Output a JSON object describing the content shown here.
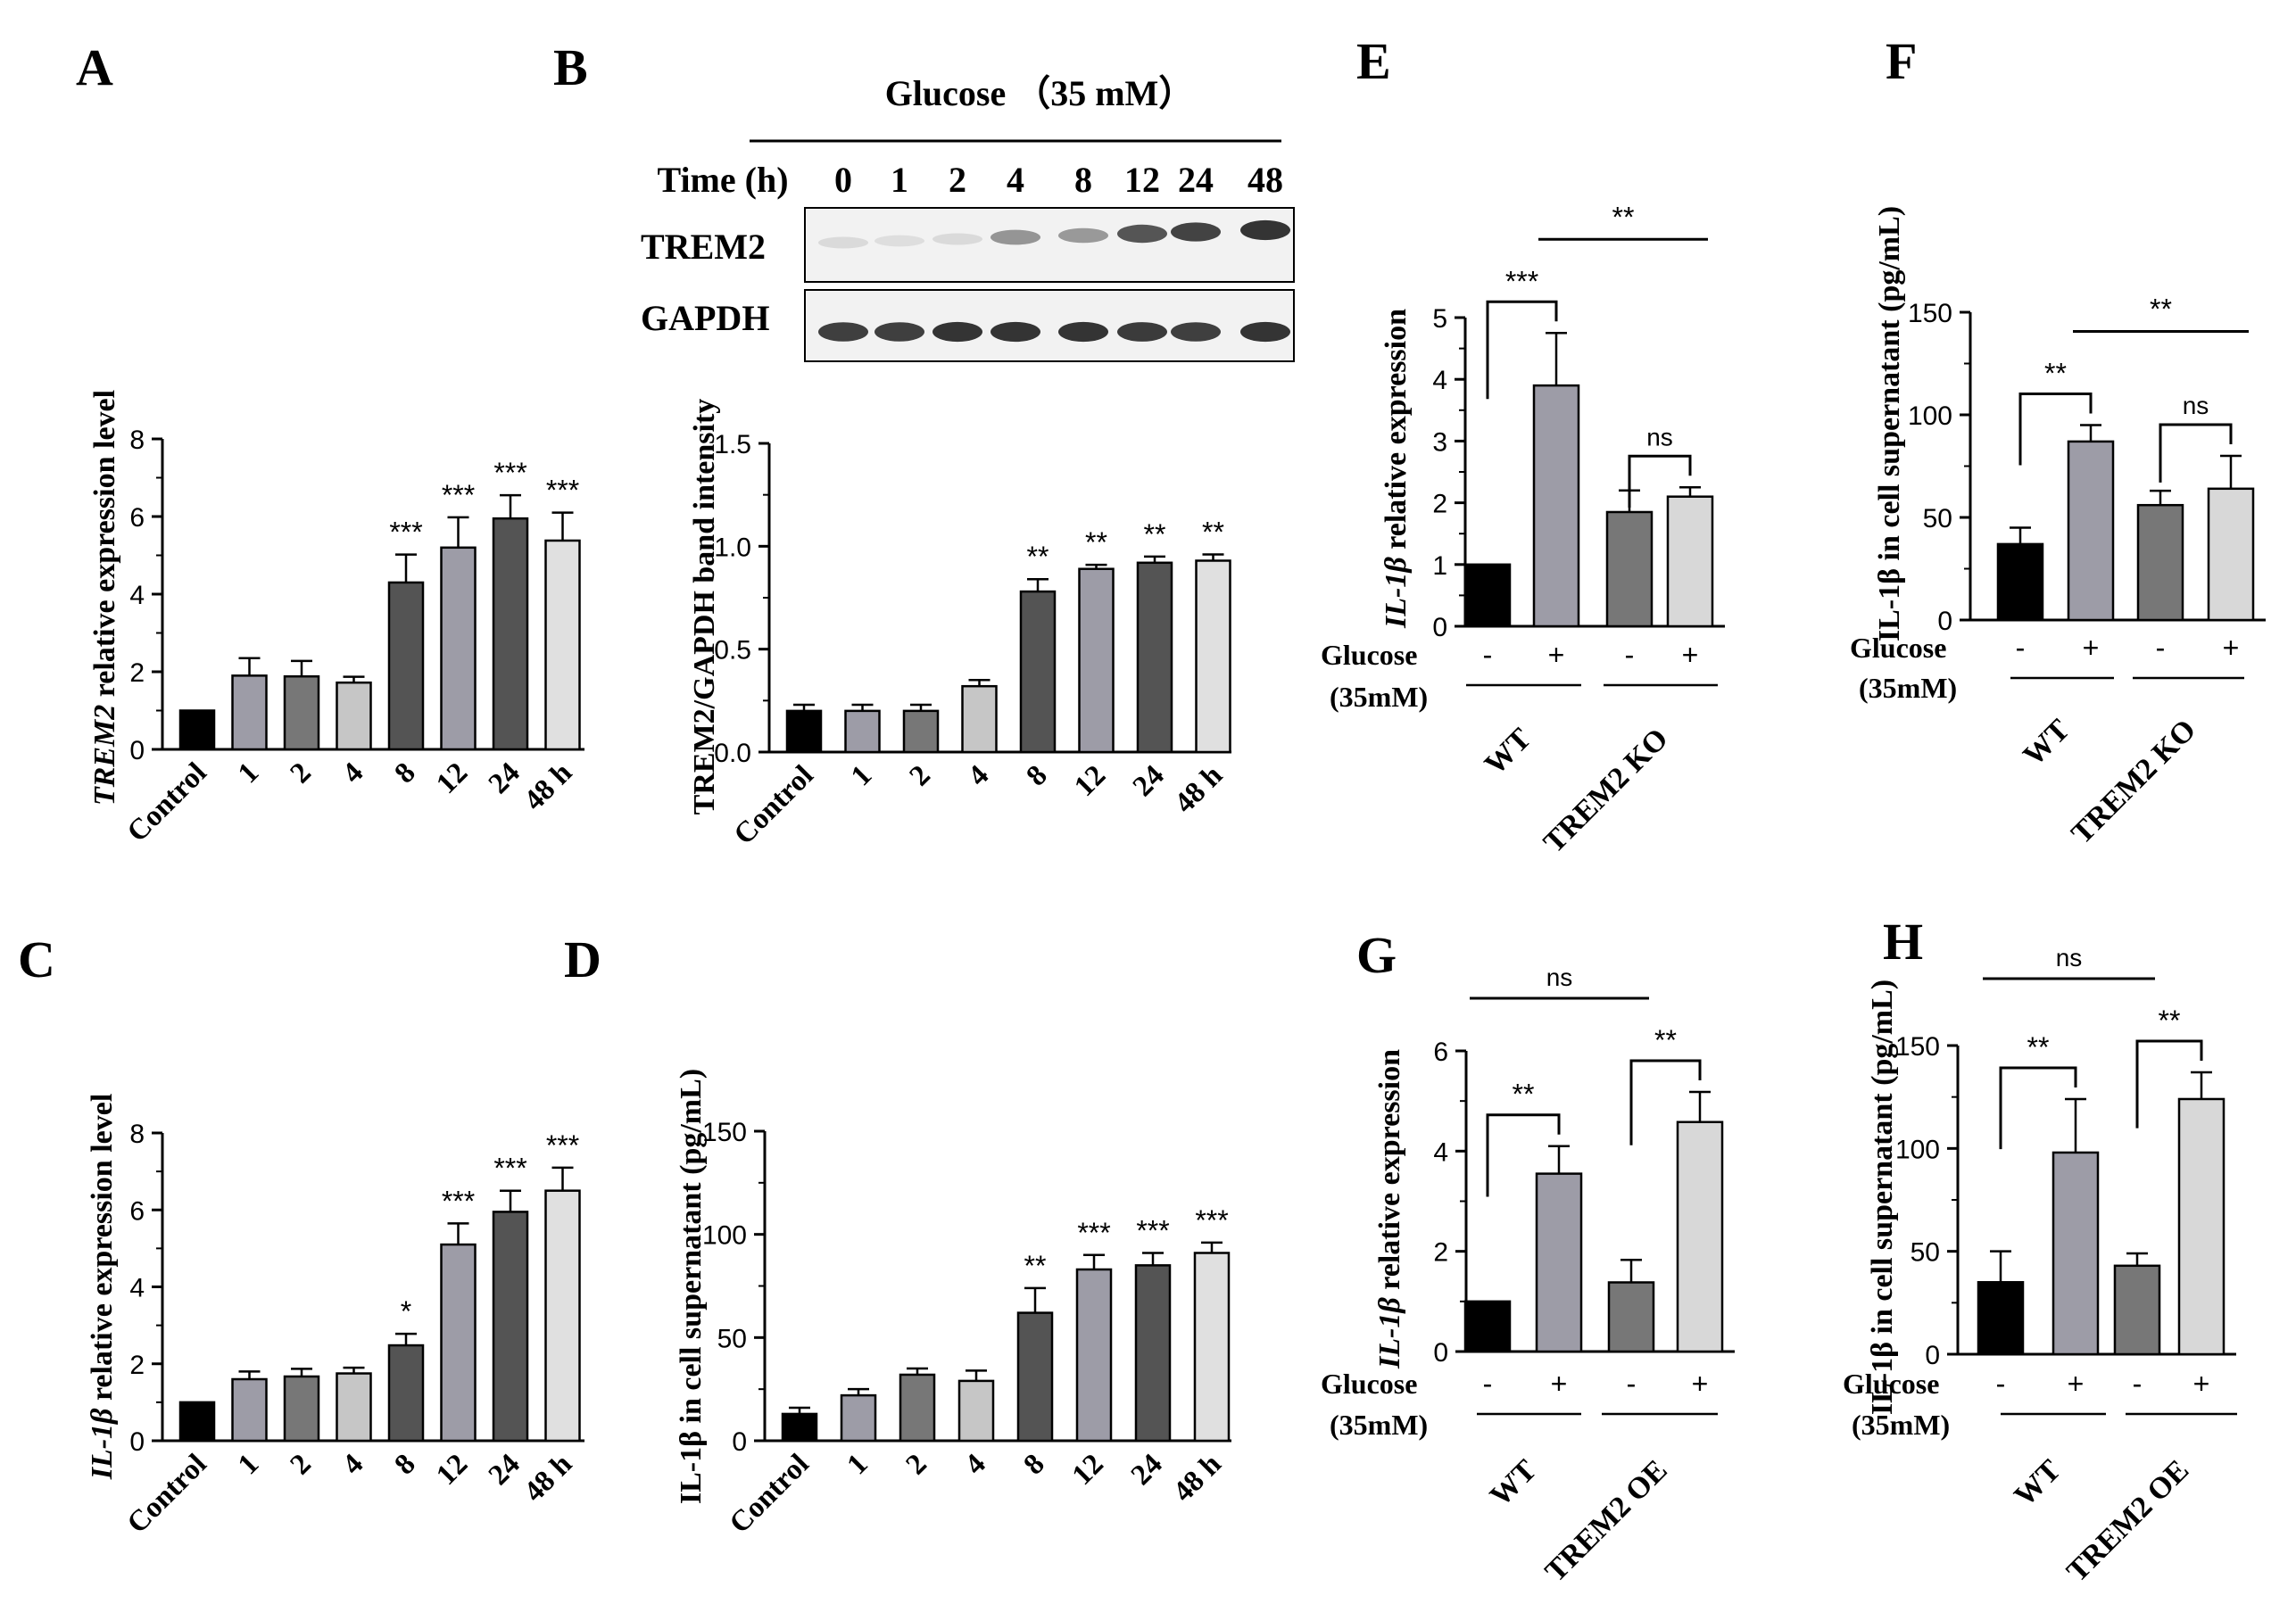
{
  "chart_data": [
    {
      "panel": "A",
      "type": "bar",
      "ylabel_italic": "TREM2",
      "ylabel": " relative expression level",
      "categories": [
        "Control",
        "1",
        "2",
        "4",
        "8",
        "12",
        "24",
        "48 h"
      ],
      "values": [
        1.0,
        1.9,
        1.88,
        1.72,
        4.3,
        5.2,
        5.95,
        5.38
      ],
      "errors": [
        0,
        0.45,
        0.4,
        0.15,
        0.72,
        0.78,
        0.6,
        0.72
      ],
      "colors": [
        "#000000",
        "#9d9ca7",
        "#777777",
        "#c6c6c6",
        "#545454",
        "#9d9ca7",
        "#545454",
        "#e0e0e0"
      ],
      "significance": [
        "",
        "",
        "",
        "",
        "***",
        "***",
        "***",
        "***"
      ],
      "ylim": [
        0,
        8
      ],
      "yticks": [
        "0",
        "2",
        "4",
        "6",
        "8"
      ]
    },
    {
      "panel": "B",
      "type": "bar",
      "ylabel": "TREM2/GAPDH band intensity",
      "categories": [
        "Control",
        "1",
        "2",
        "4",
        "8",
        "12",
        "24",
        "48 h"
      ],
      "values": [
        0.2,
        0.2,
        0.2,
        0.32,
        0.78,
        0.89,
        0.92,
        0.93
      ],
      "errors": [
        0.03,
        0.03,
        0.03,
        0.03,
        0.06,
        0.02,
        0.03,
        0.03
      ],
      "colors": [
        "#000000",
        "#9d9ca7",
        "#777777",
        "#c6c6c6",
        "#545454",
        "#9d9ca7",
        "#545454",
        "#e0e0e0"
      ],
      "significance": [
        "",
        "",
        "",
        "",
        "**",
        "**",
        "**",
        "**"
      ],
      "ylim": [
        0,
        1.5
      ],
      "yticks": [
        "0.0",
        "0.5",
        "1.0",
        "1.5"
      ]
    },
    {
      "panel": "C",
      "type": "bar",
      "ylabel_italic": "IL-1β",
      "ylabel": " relative expression level",
      "categories": [
        "Control",
        "1",
        "2",
        "4",
        "8",
        "12",
        "24",
        "48 h"
      ],
      "values": [
        1.0,
        1.6,
        1.67,
        1.75,
        2.48,
        5.1,
        5.95,
        6.5
      ],
      "errors": [
        0,
        0.2,
        0.2,
        0.15,
        0.3,
        0.55,
        0.55,
        0.6
      ],
      "colors": [
        "#000000",
        "#9d9ca7",
        "#777777",
        "#c6c6c6",
        "#545454",
        "#9d9ca7",
        "#545454",
        "#e0e0e0"
      ],
      "significance": [
        "",
        "",
        "",
        "",
        "*",
        "***",
        "***",
        "***"
      ],
      "ylim": [
        0,
        8
      ],
      "yticks": [
        "0",
        "2",
        "4",
        "6",
        "8"
      ]
    },
    {
      "panel": "D",
      "type": "bar",
      "ylabel": "IL-1β in cell supernatant (pg/mL)",
      "categories": [
        "Control",
        "1",
        "2",
        "4",
        "8",
        "12",
        "24",
        "48 h"
      ],
      "values": [
        13,
        22,
        32,
        29,
        62,
        83,
        85,
        91
      ],
      "errors": [
        3,
        3,
        3,
        5,
        12,
        7,
        6,
        5
      ],
      "colors": [
        "#000000",
        "#9d9ca7",
        "#777777",
        "#c6c6c6",
        "#545454",
        "#9d9ca7",
        "#545454",
        "#e0e0e0"
      ],
      "significance": [
        "",
        "",
        "",
        "",
        "**",
        "***",
        "***",
        "***"
      ],
      "ylim": [
        0,
        150
      ],
      "yticks": [
        "0",
        "50",
        "100",
        "150"
      ]
    },
    {
      "panel": "E",
      "type": "bar",
      "ylabel_italic": "IL-1β",
      "ylabel": " relative expression",
      "glucose": [
        "-",
        "+",
        "-",
        "+"
      ],
      "groups": [
        "WT",
        "TREM2 KO"
      ],
      "values": [
        1.0,
        3.9,
        1.85,
        2.1
      ],
      "errors": [
        0,
        0.85,
        0.35,
        0.15
      ],
      "colors": [
        "#000000",
        "#9d9ca7",
        "#777777",
        "#d8d8d8"
      ],
      "comparisons": [
        {
          "label": "***",
          "type": "bracket",
          "from": 0,
          "to": 1
        },
        {
          "label": "ns",
          "type": "bracket",
          "from": 2,
          "to": 3
        },
        {
          "label": "**",
          "type": "line",
          "from": 1,
          "to": 3
        }
      ],
      "ylim": [
        0,
        5
      ],
      "yticks": [
        "0",
        "1",
        "2",
        "3",
        "4",
        "5"
      ]
    },
    {
      "panel": "F",
      "type": "bar",
      "ylabel": "IL-1β  in cell supernatant (pg/mL)",
      "glucose": [
        "-",
        "+",
        "-",
        "+"
      ],
      "groups": [
        "WT",
        "TREM2 KO"
      ],
      "values": [
        37,
        87,
        56,
        64
      ],
      "errors": [
        8,
        8,
        7,
        16
      ],
      "colors": [
        "#000000",
        "#9d9ca7",
        "#777777",
        "#d8d8d8"
      ],
      "comparisons": [
        {
          "label": "**",
          "type": "bracket",
          "from": 0,
          "to": 1
        },
        {
          "label": "ns",
          "type": "bracket",
          "from": 2,
          "to": 3
        },
        {
          "label": "**",
          "type": "line",
          "from": 1,
          "to": 3
        }
      ],
      "ylim": [
        0,
        150
      ],
      "yticks": [
        "0",
        "50",
        "100",
        "150"
      ]
    },
    {
      "panel": "G",
      "type": "bar",
      "ylabel_italic": "IL-1β",
      "ylabel": " relative expression",
      "glucose": [
        "-",
        "+",
        "-",
        "+"
      ],
      "groups": [
        "WT",
        "TREM2 OE"
      ],
      "values": [
        1.0,
        3.55,
        1.38,
        4.58
      ],
      "errors": [
        0,
        0.55,
        0.45,
        0.6
      ],
      "colors": [
        "#000000",
        "#9d9ca7",
        "#777777",
        "#d8d8d8"
      ],
      "comparisons": [
        {
          "label": "**",
          "type": "bracket",
          "from": 0,
          "to": 1
        },
        {
          "label": "**",
          "type": "bracket",
          "from": 2,
          "to": 3
        },
        {
          "label": "ns",
          "type": "line",
          "from": 0,
          "to": 2
        }
      ],
      "ylim": [
        0,
        6
      ],
      "yticks": [
        "0",
        "2",
        "4",
        "6"
      ]
    },
    {
      "panel": "H",
      "type": "bar",
      "ylabel": "IL-1β in cell supernatant (pg/mL)",
      "glucose": [
        "-",
        "+",
        "-",
        "+"
      ],
      "groups": [
        "WT",
        "TREM2 OE"
      ],
      "values": [
        35,
        98,
        43,
        124
      ],
      "errors": [
        15,
        26,
        6,
        13
      ],
      "colors": [
        "#000000",
        "#9d9ca7",
        "#777777",
        "#d8d8d8"
      ],
      "comparisons": [
        {
          "label": "**",
          "type": "bracket",
          "from": 0,
          "to": 1
        },
        {
          "label": "**",
          "type": "bracket",
          "from": 2,
          "to": 3
        },
        {
          "label": "ns",
          "type": "line",
          "from": 0,
          "to": 2
        }
      ],
      "ylim": [
        0,
        150
      ],
      "yticks": [
        "0",
        "50",
        "100",
        "150"
      ]
    }
  ],
  "glucose_label": "Glucose",
  "glucose_conc": "(35mM)",
  "blot": {
    "header": "Glucose （35 mM）",
    "time_label": "Time (h)",
    "time_points": [
      "0",
      "1",
      "2",
      "4",
      "8",
      "12",
      "24",
      "48"
    ],
    "rows": [
      {
        "label": "TREM2",
        "intensity": [
          0.08,
          0.06,
          0.08,
          0.4,
          0.38,
          0.7,
          0.78,
          0.85
        ]
      },
      {
        "label": "GAPDH",
        "intensity": [
          0.8,
          0.8,
          0.85,
          0.85,
          0.85,
          0.82,
          0.8,
          0.85
        ]
      }
    ]
  }
}
